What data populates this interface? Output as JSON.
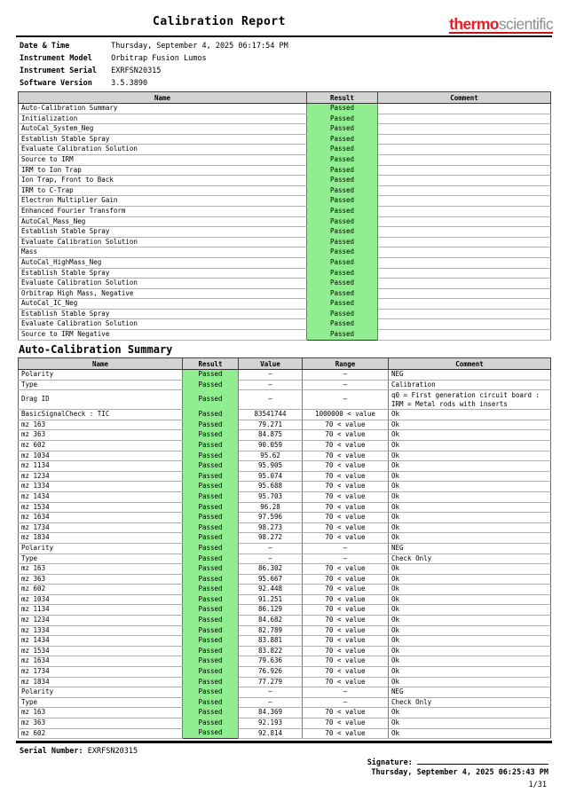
{
  "document": {
    "title": "Calibration Report",
    "logo": {
      "brand": "thermo",
      "suffix": "scientific"
    },
    "info": {
      "rows": [
        {
          "label": "Date & Time",
          "value": "Thursday, September 4, 2025 06:17:54 PM"
        },
        {
          "label": "Instrument Model",
          "value": "Orbitrap Fusion Lumos"
        },
        {
          "label": "Instrument Serial",
          "value": "EXRFSN20315"
        },
        {
          "label": "Software Version",
          "value": "3.5.3890"
        }
      ]
    }
  },
  "summary_table": {
    "headers": [
      "Name",
      "Result",
      "Comment"
    ],
    "rows": [
      [
        "Auto-Calibration Summary",
        "Passed",
        ""
      ],
      [
        "Initialization",
        "Passed",
        ""
      ],
      [
        "AutoCal_System_Neg",
        "Passed",
        ""
      ],
      [
        "Establish Stable Spray",
        "Passed",
        ""
      ],
      [
        "Evaluate Calibration Solution",
        "Passed",
        ""
      ],
      [
        "Source to IRM",
        "Passed",
        ""
      ],
      [
        "IRM to Ion Trap",
        "Passed",
        ""
      ],
      [
        "Ion Trap, Front to Back",
        "Passed",
        ""
      ],
      [
        "IRM to C-Trap",
        "Passed",
        ""
      ],
      [
        "Electron Multiplier Gain",
        "Passed",
        ""
      ],
      [
        "Enhanced Fourier Transform",
        "Passed",
        ""
      ],
      [
        "AutoCal_Mass_Neg",
        "Passed",
        ""
      ],
      [
        "Establish Stable Spray",
        "Passed",
        ""
      ],
      [
        "Evaluate Calibration Solution",
        "Passed",
        ""
      ],
      [
        "Mass",
        "Passed",
        ""
      ],
      [
        "AutoCal_HighMass_Neg",
        "Passed",
        ""
      ],
      [
        "Establish Stable Spray",
        "Passed",
        ""
      ],
      [
        "Evaluate Calibration Solution",
        "Passed",
        ""
      ],
      [
        "Orbitrap High Mass, Negative",
        "Passed",
        ""
      ],
      [
        "AutoCal_IC_Neg",
        "Passed",
        ""
      ],
      [
        "Establish Stable Spray",
        "Passed",
        ""
      ],
      [
        "Evaluate Calibration Solution",
        "Passed",
        ""
      ],
      [
        "Source to IRM Negative",
        "Passed",
        ""
      ]
    ]
  },
  "detail_section": {
    "title": "Auto-Calibration Summary",
    "headers": [
      "Name",
      "Result",
      "Value",
      "Range",
      "Comment"
    ],
    "rows": [
      [
        "Polarity",
        "Passed",
        "–",
        "–",
        "NEG"
      ],
      [
        "Type",
        "Passed",
        "–",
        "–",
        "Calibration"
      ],
      [
        "Drag ID",
        "Passed",
        "–",
        "–",
        "q0 = First generation circuit board :\nIRM = Metal rods with inserts"
      ],
      [
        "BasicSignalCheck : TIC",
        "Passed",
        "83541744",
        "1000000 < value",
        "Ok"
      ],
      [
        "mz 163",
        "Passed",
        "79.271",
        "70 < value",
        "Ok"
      ],
      [
        "mz 363",
        "Passed",
        "84.875",
        "70 < value",
        "Ok"
      ],
      [
        "mz 602",
        "Passed",
        "90.059",
        "70 < value",
        "Ok"
      ],
      [
        "mz 1034",
        "Passed",
        "95.62",
        "70 < value",
        "Ok"
      ],
      [
        "mz 1134",
        "Passed",
        "95.905",
        "70 < value",
        "Ok"
      ],
      [
        "mz 1234",
        "Passed",
        "95.074",
        "70 < value",
        "Ok"
      ],
      [
        "mz 1334",
        "Passed",
        "95.688",
        "70 < value",
        "Ok"
      ],
      [
        "mz 1434",
        "Passed",
        "95.703",
        "70 < value",
        "Ok"
      ],
      [
        "mz 1534",
        "Passed",
        "96.28",
        "70 < value",
        "Ok"
      ],
      [
        "mz 1634",
        "Passed",
        "97.596",
        "70 < value",
        "Ok"
      ],
      [
        "mz 1734",
        "Passed",
        "98.273",
        "70 < value",
        "Ok"
      ],
      [
        "mz 1834",
        "Passed",
        "98.272",
        "70 < value",
        "Ok"
      ],
      [
        "Polarity",
        "Passed",
        "–",
        "–",
        "NEG"
      ],
      [
        "Type",
        "Passed",
        "–",
        "–",
        "Check Only"
      ],
      [
        "mz 163",
        "Passed",
        "86.302",
        "70 < value",
        "Ok"
      ],
      [
        "mz 363",
        "Passed",
        "95.667",
        "70 < value",
        "Ok"
      ],
      [
        "mz 602",
        "Passed",
        "92.448",
        "70 < value",
        "Ok"
      ],
      [
        "mz 1034",
        "Passed",
        "91.251",
        "70 < value",
        "Ok"
      ],
      [
        "mz 1134",
        "Passed",
        "86.129",
        "70 < value",
        "Ok"
      ],
      [
        "mz 1234",
        "Passed",
        "84.682",
        "70 < value",
        "Ok"
      ],
      [
        "mz 1334",
        "Passed",
        "82.789",
        "70 < value",
        "Ok"
      ],
      [
        "mz 1434",
        "Passed",
        "83.881",
        "70 < value",
        "Ok"
      ],
      [
        "mz 1534",
        "Passed",
        "83.822",
        "70 < value",
        "Ok"
      ],
      [
        "mz 1634",
        "Passed",
        "79.636",
        "70 < value",
        "Ok"
      ],
      [
        "mz 1734",
        "Passed",
        "76.926",
        "70 < value",
        "Ok"
      ],
      [
        "mz 1834",
        "Passed",
        "77.279",
        "70 < value",
        "Ok"
      ],
      [
        "Polarity",
        "Passed",
        "–",
        "–",
        "NEG"
      ],
      [
        "Type",
        "Passed",
        "–",
        "–",
        "Check Only"
      ],
      [
        "mz 163",
        "Passed",
        "84.369",
        "70 < value",
        "Ok"
      ],
      [
        "mz 363",
        "Passed",
        "92.193",
        "70 < value",
        "Ok"
      ],
      [
        "mz 602",
        "Passed",
        "92.814",
        "70 < value",
        "Ok"
      ]
    ]
  },
  "footer": {
    "serial_label": "Serial Number:",
    "serial_value": "EXRFSN20315",
    "signature_label": "Signature:",
    "datetime": "Thursday, September 4, 2025 06:25:43 PM",
    "page": "1/31"
  },
  "colors": {
    "passed_green": "#90EE90",
    "header_gray": "#d3d3d3",
    "thermo_red": "#e31e24",
    "scientific_gray": "#8d8f92"
  }
}
